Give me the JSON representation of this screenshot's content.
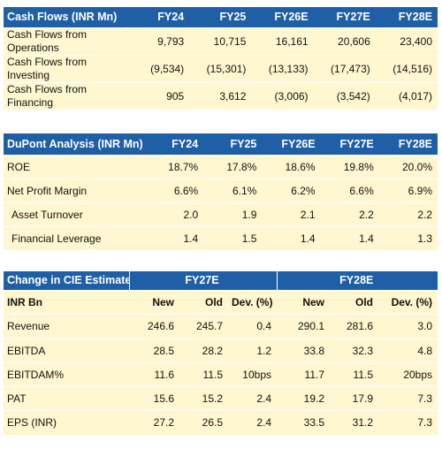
{
  "cash_flows": {
    "title": "Cash Flows (INR Mn)",
    "columns": [
      "FY24",
      "FY25",
      "FY26E",
      "FY27E",
      "FY28E"
    ],
    "rows": [
      {
        "label_line1": "Cash Flows from",
        "label_line2": "Operations",
        "values": [
          "9,793",
          "10,715",
          "16,161",
          "20,606",
          "23,400"
        ]
      },
      {
        "label_line1": "Cash Flows from",
        "label_line2": "Investing",
        "values": [
          "(9,534)",
          "(15,301)",
          "(13,133)",
          "(17,473)",
          "(14,516)"
        ]
      },
      {
        "label_line1": "Cash Flows from",
        "label_line2": "Financing",
        "values": [
          "905",
          "3,612",
          "(3,006)",
          "(3,542)",
          "(4,017)"
        ]
      }
    ]
  },
  "dupont": {
    "title": "DuPont Analysis (INR Mn)",
    "columns": [
      "FY24",
      "FY25",
      "FY26E",
      "FY27E",
      "FY28E"
    ],
    "rows": [
      {
        "label": "ROE",
        "values": [
          "18.7%",
          "17.8%",
          "18.6%",
          "19.8%",
          "20.0%"
        ]
      },
      {
        "label": "Net Profit Margin",
        "values": [
          "6.6%",
          "6.1%",
          "6.2%",
          "6.6%",
          "6.9%"
        ]
      },
      {
        "label": "Asset Turnover",
        "values": [
          "2.0",
          "1.9",
          "2.1",
          "2.2",
          "2.2"
        ]
      },
      {
        "label": "Financial Leverage",
        "values": [
          "1.4",
          "1.5",
          "1.4",
          "1.4",
          "1.3"
        ]
      }
    ]
  },
  "estimates": {
    "title": "Change in CIE Estimates",
    "group1": "FY27E",
    "group2": "FY28E",
    "subheader": {
      "label": "INR Bn",
      "new": "New",
      "old": "Old",
      "dev": "Dev. (%)"
    },
    "rows": [
      {
        "label": "Revenue",
        "values": [
          "246.6",
          "245.7",
          "0.4",
          "290.1",
          "281.6",
          "3.0"
        ]
      },
      {
        "label": "EBITDA",
        "values": [
          "28.5",
          "28.2",
          "1.2",
          "33.8",
          "32.3",
          "4.8"
        ]
      },
      {
        "label": "EBITDAM%",
        "values": [
          "11.6",
          "11.5",
          "10bps",
          "11.7",
          "11.5",
          "20bps"
        ]
      },
      {
        "label": "PAT",
        "values": [
          "15.6",
          "15.2",
          "2.4",
          "19.2",
          "17.9",
          "7.3"
        ]
      },
      {
        "label": "EPS (INR)",
        "values": [
          "27.2",
          "26.5",
          "2.4",
          "33.5",
          "31.2",
          "7.3"
        ]
      }
    ]
  }
}
